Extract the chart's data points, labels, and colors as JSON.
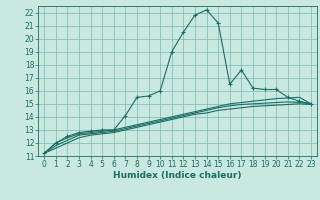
{
  "xlabel": "Humidex (Indice chaleur)",
  "xlim": [
    -0.5,
    23.5
  ],
  "ylim": [
    11,
    22.5
  ],
  "xticks": [
    0,
    1,
    2,
    3,
    4,
    5,
    6,
    7,
    8,
    9,
    10,
    11,
    12,
    13,
    14,
    15,
    16,
    17,
    18,
    19,
    20,
    21,
    22,
    23
  ],
  "yticks": [
    11,
    12,
    13,
    14,
    15,
    16,
    17,
    18,
    19,
    20,
    21,
    22
  ],
  "bg_color": "#c8e8e0",
  "grid_color": "#7ab8b0",
  "line_color": "#1a6e62",
  "line1_x": [
    0,
    1,
    2,
    3,
    4,
    5,
    6,
    7,
    8,
    9,
    10,
    11,
    12,
    13,
    14,
    15,
    16,
    17,
    18,
    19,
    20,
    21,
    22,
    23
  ],
  "line1_y": [
    11.2,
    12.0,
    12.5,
    12.8,
    12.9,
    13.0,
    13.0,
    14.1,
    15.5,
    15.6,
    16.0,
    19.0,
    20.5,
    21.8,
    22.2,
    21.2,
    16.5,
    17.6,
    16.2,
    16.1,
    16.1,
    15.5,
    15.2,
    15.0
  ],
  "line2_x": [
    0,
    1,
    2,
    3,
    4,
    5,
    6,
    7,
    8,
    9,
    10,
    11,
    12,
    13,
    14,
    15,
    16,
    17,
    18,
    19,
    20,
    21,
    22,
    23
  ],
  "line2_y": [
    11.2,
    12.0,
    12.4,
    12.7,
    12.8,
    12.9,
    13.0,
    13.2,
    13.4,
    13.6,
    13.8,
    14.0,
    14.2,
    14.4,
    14.6,
    14.8,
    15.0,
    15.1,
    15.2,
    15.3,
    15.4,
    15.45,
    15.5,
    15.0
  ],
  "line3_x": [
    0,
    1,
    2,
    3,
    4,
    5,
    6,
    7,
    8,
    9,
    10,
    11,
    12,
    13,
    14,
    15,
    16,
    17,
    18,
    19,
    20,
    21,
    22,
    23
  ],
  "line3_y": [
    11.2,
    11.8,
    12.2,
    12.6,
    12.7,
    12.8,
    12.9,
    13.1,
    13.3,
    13.5,
    13.7,
    13.9,
    14.1,
    14.3,
    14.5,
    14.7,
    14.85,
    14.95,
    15.0,
    15.05,
    15.1,
    15.15,
    15.1,
    15.0
  ],
  "line4_x": [
    0,
    1,
    2,
    3,
    4,
    5,
    6,
    7,
    8,
    9,
    10,
    11,
    12,
    13,
    14,
    15,
    16,
    17,
    18,
    19,
    20,
    21,
    22,
    23
  ],
  "line4_y": [
    11.2,
    11.6,
    12.0,
    12.4,
    12.6,
    12.7,
    12.8,
    13.0,
    13.2,
    13.4,
    13.6,
    13.8,
    14.0,
    14.2,
    14.3,
    14.5,
    14.6,
    14.7,
    14.8,
    14.85,
    14.9,
    14.95,
    15.0,
    14.95
  ],
  "tick_fontsize": 5.5,
  "xlabel_fontsize": 6.5
}
